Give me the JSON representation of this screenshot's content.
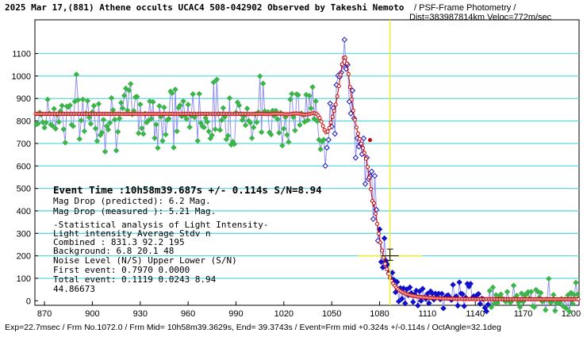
{
  "header": {
    "title": "2025 Mar 17,(881) Athene occults UCAC4 508-042902 Observed by Takeshi Nemoto",
    "subtitle1": "/ PSF-Frame Photometry /",
    "subtitle2": "Dist=383987814km Veloc=772m/sec"
  },
  "panel": {
    "event_line": "Event Time :10h58m39.687s  +/- 0.114s  S/N=8.94",
    "drop_pred": "Mag Drop (predicted):  6.2   Mag.",
    "drop_meas": "Mag Drop (measured ):  5.21  Mag.",
    "stat_title": "-Statistical analysis of Light Intensity-",
    "stat_head": "Light intensity     Average    Stdv     n",
    "stat_combined": "  Combined  :         831.3     92.2    195",
    "stat_background": "  Background:           6.8     20.1     48",
    "noise_head": "Noise Level (N/S)   Upper     Lower    (S/N)",
    "noise_first": "  First event:       0.7970    0.0000",
    "noise_total": "  Total event:       0.1119    0.0243    8.94",
    "corner_value": "44.86673"
  },
  "footer": "Exp=22.7msec / Frm No.1072.0 / Frm Mid= 10h58m39.3629s,  End= 39.3743s / Event=Frm mid +0.324s +/-0.114s / OctAngle=32.1deg",
  "colors": {
    "grid": "#5fd7e0",
    "green_points": "#3cb44b",
    "blue_points": "#1010c8",
    "raw_line": "#9090f0",
    "model_curve": "#cc0000",
    "event_marker": "#f0f020"
  },
  "chart_data": {
    "type": "scatter",
    "x_ticks": [
      870,
      900,
      930,
      960,
      990,
      1020,
      1050,
      1080,
      1110,
      1140,
      1170,
      1200
    ],
    "y_ticks": [
      0,
      100,
      200,
      300,
      400,
      500,
      600,
      700,
      800,
      900,
      1000,
      1100
    ],
    "xlim": [
      864,
      1205
    ],
    "ylim": [
      -20,
      1250
    ],
    "grid": "horizontal",
    "event_x": 1086.5,
    "event_y": 200,
    "event_y_err": [
      180,
      230
    ],
    "event_x_err": [
      1081,
      1092
    ],
    "seed_noise": 7,
    "green_x_range": [
      864,
      1046
    ],
    "green_x_range2": [
      1148,
      1205
    ],
    "blue_x_range": [
      1046,
      1148
    ],
    "model": {
      "baseline": 831.3,
      "background": 6.8,
      "drop_center": 1076,
      "drop_width": 4.2,
      "bump_center": 1058,
      "bump_peak": 1105
    }
  }
}
